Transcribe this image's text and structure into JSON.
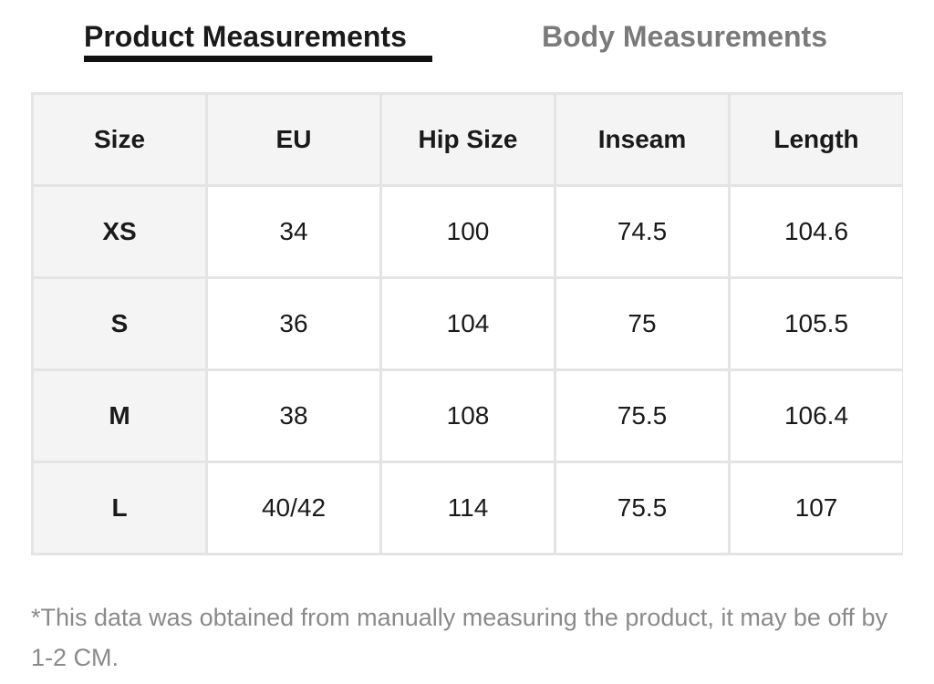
{
  "tabs": {
    "product_label": "Product Measurements",
    "body_label": "Body Measurements",
    "active": "Product Measurements"
  },
  "table": {
    "headers": [
      "Size",
      "EU",
      "Hip Size",
      "Inseam",
      "Length"
    ],
    "rows": [
      [
        "XS",
        "34",
        "100",
        "74.5",
        "104.6"
      ],
      [
        "S",
        "36",
        "104",
        "75",
        "105.5"
      ],
      [
        "M",
        "38",
        "108",
        "75.5",
        "106.4"
      ],
      [
        "L",
        "40/42",
        "114",
        "75.5",
        "107"
      ]
    ]
  },
  "note": "*This data was obtained from manually measuring the product, it may be off by 1-2 CM.",
  "colors": {
    "active_tab": "#1a1a1a",
    "inactive_tab": "#7a7a7a",
    "header_bg": "#f4f4f4",
    "border": "#e4e4e4",
    "note_text": "#8a8a8a"
  }
}
